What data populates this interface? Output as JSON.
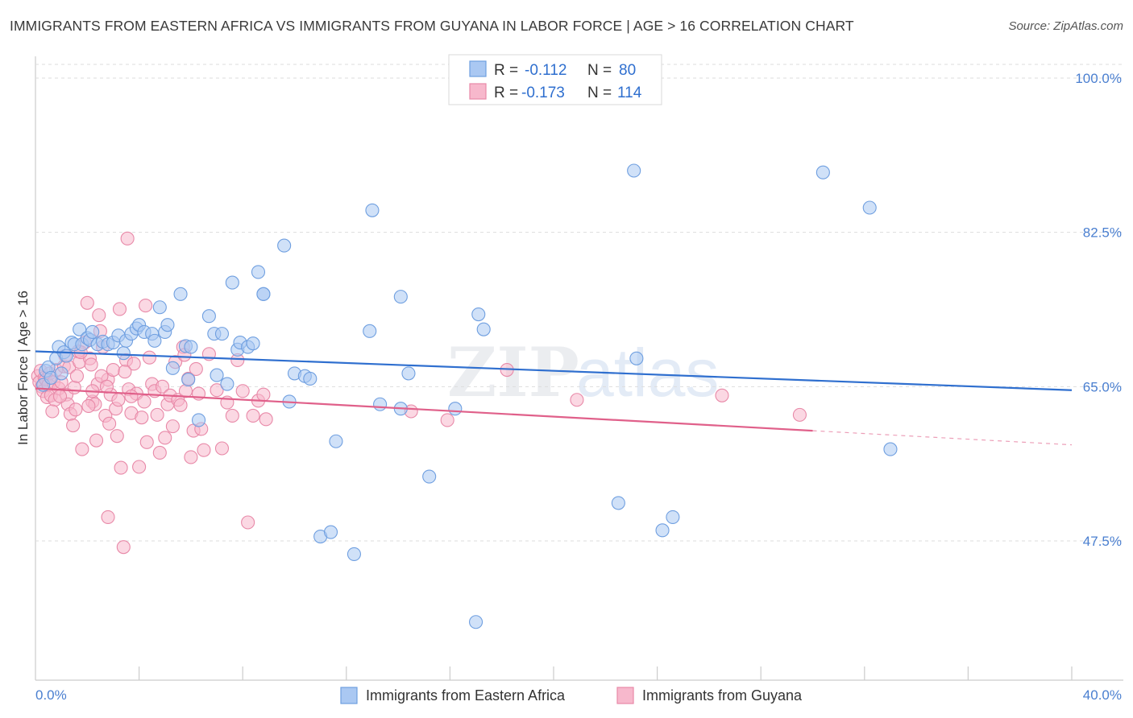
{
  "header": {
    "title": "IMMIGRANTS FROM EASTERN AFRICA VS IMMIGRANTS FROM GUYANA IN LABOR FORCE | AGE > 16 CORRELATION CHART",
    "source": "Source: ZipAtlas.com"
  },
  "watermark": {
    "part1": "ZIP",
    "part2": "atlas"
  },
  "colors": {
    "blue_fill": "#aac8f2",
    "blue_stroke": "#6f9fe0",
    "blue_line": "#2f6fcf",
    "pink_fill": "#f7b8cc",
    "pink_stroke": "#e889a8",
    "pink_line": "#e0608a",
    "tick_text": "#4a7fd0",
    "grid": "#dddddd"
  },
  "chart_data": {
    "type": "scatter",
    "title": "IMMIGRANTS FROM EASTERN AFRICA VS IMMIGRANTS FROM GUYANA IN LABOR FORCE | AGE > 16 CORRELATION CHART",
    "xlabel": "",
    "ylabel": "In Labor Force | Age > 16",
    "xlim": [
      0.0,
      40.0
    ],
    "ylim": [
      30.0,
      101.5
    ],
    "x_tick_labels": {
      "min": "0.0%",
      "max": "40.0%"
    },
    "y_ticks": [
      {
        "value": 100.0,
        "label": "100.0%"
      },
      {
        "value": 82.5,
        "label": "82.5%"
      },
      {
        "value": 65.0,
        "label": "65.0%"
      },
      {
        "value": 47.5,
        "label": "47.5%"
      }
    ],
    "legend": {
      "placement": "top-center",
      "entries": [
        {
          "r_label": "R =",
          "r_value": "-0.112",
          "n_label": "N =",
          "n_value": "80"
        },
        {
          "r_label": "R =",
          "r_value": "-0.173",
          "n_label": "N =",
          "n_value": "114"
        }
      ]
    },
    "series": [
      {
        "name": "Immigrants from Eastern Africa",
        "color": "blue",
        "trend": {
          "x": [
            0.0,
            40.0
          ],
          "y": [
            69.0,
            64.6
          ]
        },
        "points": [
          [
            0.3,
            65.2
          ],
          [
            0.4,
            66.8
          ],
          [
            0.5,
            67.2
          ],
          [
            0.6,
            66.0
          ],
          [
            0.8,
            68.2
          ],
          [
            0.9,
            69.5
          ],
          [
            1.0,
            66.5
          ],
          [
            1.1,
            68.9
          ],
          [
            1.2,
            68.5
          ],
          [
            1.4,
            70.0
          ],
          [
            1.5,
            69.8
          ],
          [
            1.7,
            71.5
          ],
          [
            1.8,
            69.8
          ],
          [
            2.0,
            70.5
          ],
          [
            2.1,
            70.3
          ],
          [
            2.2,
            71.2
          ],
          [
            2.4,
            69.8
          ],
          [
            2.6,
            70.1
          ],
          [
            2.8,
            69.8
          ],
          [
            3.0,
            70.0
          ],
          [
            3.2,
            70.8
          ],
          [
            3.4,
            68.8
          ],
          [
            3.5,
            70.2
          ],
          [
            3.7,
            71.0
          ],
          [
            3.9,
            71.6
          ],
          [
            4.0,
            72.0
          ],
          [
            4.2,
            71.2
          ],
          [
            4.5,
            71.0
          ],
          [
            4.6,
            70.2
          ],
          [
            4.8,
            74.0
          ],
          [
            5.0,
            71.2
          ],
          [
            5.1,
            72.0
          ],
          [
            5.3,
            67.1
          ],
          [
            5.6,
            75.5
          ],
          [
            5.8,
            69.6
          ],
          [
            5.9,
            65.8
          ],
          [
            6.0,
            69.5
          ],
          [
            6.3,
            61.2
          ],
          [
            6.7,
            73.0
          ],
          [
            6.9,
            71.0
          ],
          [
            7.0,
            66.3
          ],
          [
            7.2,
            71.0
          ],
          [
            7.4,
            65.3
          ],
          [
            7.6,
            76.8
          ],
          [
            7.8,
            69.2
          ],
          [
            7.9,
            70.0
          ],
          [
            8.2,
            69.5
          ],
          [
            8.4,
            69.9
          ],
          [
            8.6,
            78.0
          ],
          [
            8.8,
            75.5
          ],
          [
            8.8,
            75.5
          ],
          [
            9.6,
            81.0
          ],
          [
            9.8,
            63.3
          ],
          [
            10.0,
            66.5
          ],
          [
            10.4,
            66.2
          ],
          [
            10.6,
            65.9
          ],
          [
            11.0,
            48.0
          ],
          [
            11.4,
            48.5
          ],
          [
            11.6,
            58.8
          ],
          [
            12.3,
            46.0
          ],
          [
            12.9,
            71.3
          ],
          [
            13.3,
            63.0
          ],
          [
            13.0,
            85.0
          ],
          [
            14.1,
            75.2
          ],
          [
            14.4,
            66.5
          ],
          [
            14.1,
            62.5
          ],
          [
            15.2,
            54.8
          ],
          [
            16.2,
            62.5
          ],
          [
            17.1,
            73.2
          ],
          [
            17.3,
            71.5
          ],
          [
            17.0,
            38.3
          ],
          [
            22.5,
            51.8
          ],
          [
            23.2,
            68.2
          ],
          [
            23.1,
            89.5
          ],
          [
            24.2,
            48.7
          ],
          [
            24.6,
            50.2
          ],
          [
            30.4,
            89.3
          ],
          [
            32.2,
            85.3
          ],
          [
            33.0,
            57.9
          ]
        ]
      },
      {
        "name": "Immigrants from Guyana",
        "color": "pink",
        "trend": {
          "x": [
            0.0,
            30.0
          ],
          "y": [
            64.8,
            60.0
          ]
        },
        "trend_dashed": {
          "x": [
            30.0,
            40.0
          ],
          "y": [
            60.0,
            58.4
          ]
        },
        "points": [
          [
            0.1,
            66.2
          ],
          [
            0.15,
            65.5
          ],
          [
            0.2,
            66.8
          ],
          [
            0.25,
            65.0
          ],
          [
            0.3,
            64.5
          ],
          [
            0.35,
            66.0
          ],
          [
            0.4,
            65.8
          ],
          [
            0.45,
            63.8
          ],
          [
            0.5,
            65.2
          ],
          [
            0.55,
            66.5
          ],
          [
            0.6,
            64.0
          ],
          [
            0.7,
            65.5
          ],
          [
            0.75,
            63.5
          ],
          [
            0.8,
            66.9
          ],
          [
            0.9,
            64.8
          ],
          [
            1.0,
            65.5
          ],
          [
            1.1,
            67.3
          ],
          [
            1.2,
            64.1
          ],
          [
            1.25,
            63.0
          ],
          [
            1.3,
            67.2
          ],
          [
            1.35,
            61.9
          ],
          [
            1.45,
            60.6
          ],
          [
            1.5,
            64.9
          ],
          [
            1.55,
            62.4
          ],
          [
            1.6,
            66.2
          ],
          [
            1.7,
            67.8
          ],
          [
            1.8,
            57.9
          ],
          [
            1.9,
            70.0
          ],
          [
            2.0,
            74.5
          ],
          [
            2.1,
            68.2
          ],
          [
            2.2,
            63.3
          ],
          [
            2.3,
            63.0
          ],
          [
            2.4,
            65.3
          ],
          [
            2.5,
            71.3
          ],
          [
            2.6,
            69.5
          ],
          [
            2.7,
            61.7
          ],
          [
            2.8,
            65.8
          ],
          [
            2.9,
            64.1
          ],
          [
            3.0,
            66.9
          ],
          [
            3.1,
            62.5
          ],
          [
            3.2,
            63.5
          ],
          [
            3.3,
            55.8
          ],
          [
            3.4,
            46.8
          ],
          [
            3.5,
            68.0
          ],
          [
            3.55,
            81.8
          ],
          [
            3.6,
            64.7
          ],
          [
            3.7,
            62.0
          ],
          [
            3.8,
            67.6
          ],
          [
            3.9,
            64.2
          ],
          [
            4.0,
            55.9
          ],
          [
            4.1,
            61.5
          ],
          [
            4.2,
            63.3
          ],
          [
            4.3,
            58.7
          ],
          [
            4.4,
            68.3
          ],
          [
            4.5,
            65.3
          ],
          [
            4.6,
            64.5
          ],
          [
            4.7,
            61.8
          ],
          [
            4.8,
            57.5
          ],
          [
            4.9,
            65.0
          ],
          [
            5.0,
            59.2
          ],
          [
            5.1,
            63.0
          ],
          [
            5.2,
            64.0
          ],
          [
            5.3,
            60.5
          ],
          [
            5.4,
            67.8
          ],
          [
            5.5,
            63.5
          ],
          [
            5.6,
            62.9
          ],
          [
            5.7,
            69.5
          ],
          [
            5.8,
            64.5
          ],
          [
            5.9,
            65.9
          ],
          [
            6.0,
            57.0
          ],
          [
            6.1,
            60.0
          ],
          [
            6.2,
            67.0
          ],
          [
            6.3,
            64.2
          ],
          [
            6.4,
            60.2
          ],
          [
            6.5,
            57.8
          ],
          [
            6.7,
            68.7
          ],
          [
            7.0,
            64.6
          ],
          [
            7.2,
            58.0
          ],
          [
            7.4,
            63.2
          ],
          [
            7.6,
            61.7
          ],
          [
            7.8,
            68.0
          ],
          [
            8.0,
            64.5
          ],
          [
            8.2,
            49.6
          ],
          [
            8.4,
            61.7
          ],
          [
            8.6,
            63.4
          ],
          [
            8.8,
            64.1
          ],
          [
            8.9,
            61.3
          ],
          [
            2.2,
            64.5
          ],
          [
            2.35,
            58.9
          ],
          [
            2.55,
            66.2
          ],
          [
            2.75,
            65.0
          ],
          [
            3.15,
            59.4
          ],
          [
            3.45,
            66.7
          ],
          [
            3.7,
            63.9
          ],
          [
            1.15,
            68.5
          ],
          [
            1.65,
            69.0
          ],
          [
            2.05,
            62.8
          ],
          [
            2.45,
            73.1
          ],
          [
            2.85,
            60.8
          ],
          [
            3.25,
            73.8
          ],
          [
            2.8,
            50.2
          ],
          [
            4.25,
            74.2
          ],
          [
            5.75,
            68.6
          ],
          [
            0.95,
            63.9
          ],
          [
            0.65,
            62.2
          ],
          [
            1.75,
            68.9
          ],
          [
            2.15,
            67.5
          ],
          [
            14.5,
            62.2
          ],
          [
            15.9,
            61.2
          ],
          [
            20.9,
            63.5
          ],
          [
            26.5,
            64.0
          ],
          [
            29.5,
            61.8
          ],
          [
            18.2,
            66.9
          ]
        ]
      }
    ]
  },
  "bottom_legend": {
    "items": [
      {
        "label": "Immigrants from Eastern Africa"
      },
      {
        "label": "Immigrants from Guyana"
      }
    ]
  }
}
